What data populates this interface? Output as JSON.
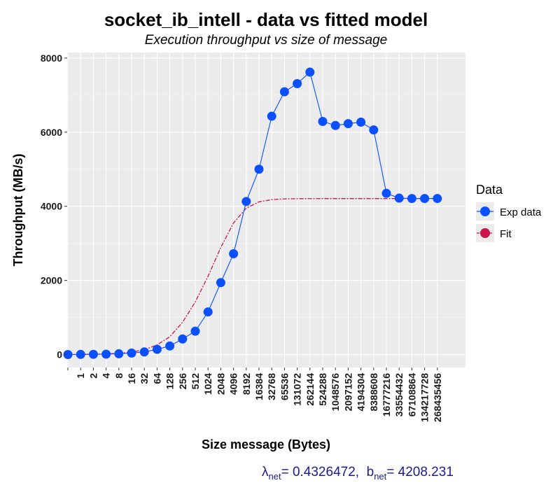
{
  "chart_data": {
    "type": "line",
    "title": "socket_ib_intell - data vs fitted model",
    "subtitle": "Execution throughput vs size of message",
    "xlabel": "Size message (Bytes)",
    "ylabel": "Throughput (MB/s)",
    "x_scale": "log2",
    "x": [
      0,
      1,
      2,
      4,
      8,
      16,
      32,
      64,
      128,
      256,
      512,
      1024,
      2048,
      4096,
      8192,
      16384,
      32768,
      65536,
      131072,
      262144,
      524288,
      1048576,
      2097152,
      4194304,
      8388608,
      16777216,
      33554432,
      67108864,
      134217728,
      268435456
    ],
    "x_tick_labels": [
      "1",
      "2",
      "4",
      "8",
      "16",
      "32",
      "64",
      "128",
      "256",
      "512",
      "1024",
      "2048",
      "4096",
      "8192",
      "16384",
      "32768",
      "65536",
      "131072",
      "262144",
      "524288",
      "1048576",
      "2097152",
      "4194304",
      "8388608",
      "16777216",
      "33554432",
      "67108864",
      "134217728",
      "268435456"
    ],
    "y_ticks": [
      0,
      2000,
      4000,
      6000,
      8000
    ],
    "ylim": [
      -350,
      8150
    ],
    "grid": true,
    "legend_title": "Data",
    "legend_position": "right",
    "series": [
      {
        "name": "Exp data",
        "color": "#0a50ff",
        "style": "line+points",
        "values": [
          0,
          3,
          5,
          10,
          20,
          40,
          70,
          140,
          230,
          420,
          630,
          1150,
          1940,
          2720,
          4130,
          5000,
          6430,
          7090,
          7310,
          7620,
          6290,
          6180,
          6230,
          6270,
          6060,
          4350,
          4220,
          4210,
          4210,
          4210
        ]
      },
      {
        "name": "Fit",
        "color": "#c8154a",
        "style": "dashed-line",
        "values": [
          0,
          4,
          8,
          17,
          33,
          66,
          130,
          260,
          480,
          870,
          1420,
          2110,
          2890,
          3550,
          3950,
          4120,
          4180,
          4200,
          4205,
          4207,
          4208,
          4208,
          4208,
          4208,
          4208,
          4208,
          4208,
          4208,
          4208,
          4208
        ]
      }
    ]
  },
  "caption": {
    "lambda_symbol": "λ",
    "lambda_sub": "net",
    "lambda_value": "= 0.4326472,",
    "b_symbol": "b",
    "b_sub": "net",
    "b_value": "= 4208.231"
  }
}
